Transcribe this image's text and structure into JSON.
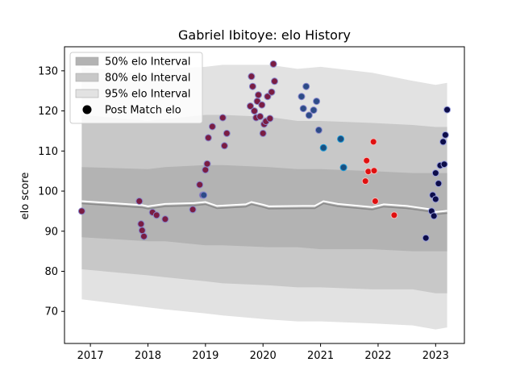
{
  "chart_data": {
    "type": "scatter",
    "title": "Gabriel Ibitoye: elo History",
    "xlabel": "",
    "ylabel": "elo score",
    "xlim": [
      2016.55,
      2023.5
    ],
    "ylim": [
      62,
      136
    ],
    "x_ticks": [
      2017,
      2018,
      2019,
      2020,
      2021,
      2022,
      2023
    ],
    "x_tick_labels": [
      "2017",
      "2018",
      "2019",
      "2020",
      "2021",
      "2022",
      "2023"
    ],
    "y_ticks": [
      70,
      80,
      90,
      100,
      110,
      120,
      130
    ],
    "y_tick_labels": [
      "70",
      "80",
      "90",
      "100",
      "110",
      "120",
      "130"
    ],
    "grid": false,
    "legend_position": "top-left",
    "legend": [
      {
        "label": "50% elo Interval",
        "kind": "band",
        "color": "#b3b3b3"
      },
      {
        "label": "80% elo Interval",
        "kind": "band",
        "color": "#c8c8c8"
      },
      {
        "label": "95% elo Interval",
        "kind": "band",
        "color": "#e2e2e2"
      },
      {
        "label": "Post Match elo",
        "kind": "marker",
        "color": "#000000"
      }
    ],
    "bands": {
      "x": [
        2016.85,
        2018.0,
        2018.3,
        2019.0,
        2019.3,
        2020.1,
        2020.6,
        2021.0,
        2021.9,
        2022.6,
        2023.0,
        2023.2
      ],
      "p95_low": [
        73.0,
        71.0,
        70.5,
        69.5,
        69.0,
        68.0,
        67.5,
        67.5,
        67.0,
        66.5,
        65.5,
        66.0
      ],
      "p95_high": [
        131.0,
        129.0,
        130.5,
        131.0,
        131.5,
        131.5,
        130.5,
        131.0,
        129.5,
        127.5,
        126.5,
        127.0
      ],
      "p80_low": [
        80.5,
        79.0,
        78.5,
        77.5,
        77.0,
        76.5,
        76.0,
        76.0,
        75.5,
        75.5,
        74.5,
        74.5
      ],
      "p80_high": [
        119.0,
        117.5,
        118.0,
        119.0,
        119.0,
        118.5,
        117.5,
        117.5,
        117.0,
        116.5,
        116.0,
        116.0
      ],
      "p50_low": [
        88.5,
        87.5,
        87.5,
        86.5,
        86.5,
        86.0,
        86.0,
        85.5,
        85.5,
        85.0,
        85.0,
        85.0
      ],
      "p50_high": [
        106.0,
        105.5,
        106.0,
        106.5,
        106.5,
        106.0,
        105.5,
        105.5,
        105.0,
        104.5,
        104.5,
        104.5
      ]
    },
    "median_line": {
      "x": [
        2016.85,
        2017.9,
        2018.0,
        2018.3,
        2018.8,
        2019.0,
        2019.2,
        2019.7,
        2019.8,
        2020.0,
        2020.1,
        2020.7,
        2020.9,
        2021.05,
        2021.3,
        2021.9,
        2022.1,
        2022.5,
        2022.95,
        2023.0,
        2023.2
      ],
      "y": [
        97.5,
        96.5,
        96.2,
        96.8,
        97.0,
        97.3,
        96.3,
        96.7,
        97.3,
        96.6,
        96.2,
        96.3,
        96.3,
        97.5,
        96.8,
        96.0,
        96.7,
        96.3,
        95.4,
        94.8,
        95.1
      ],
      "offset": -0.6
    },
    "series": [
      {
        "color": "#7a1d43",
        "edge": "#8888cc",
        "points": [
          [
            2016.85,
            95.0
          ],
          [
            2017.85,
            97.5
          ],
          [
            2017.88,
            91.8
          ],
          [
            2017.9,
            90.2
          ],
          [
            2017.93,
            88.7
          ],
          [
            2018.08,
            94.7
          ],
          [
            2018.15,
            94.0
          ],
          [
            2018.3,
            93.0
          ],
          [
            2018.78,
            95.4
          ],
          [
            2018.9,
            101.6
          ],
          [
            2018.95,
            99.0
          ],
          [
            2019.0,
            105.3
          ],
          [
            2019.03,
            106.8
          ],
          [
            2019.05,
            113.3
          ],
          [
            2019.12,
            116.1
          ],
          [
            2019.3,
            118.3
          ],
          [
            2019.33,
            111.3
          ],
          [
            2019.37,
            114.4
          ],
          [
            2019.78,
            121.2
          ],
          [
            2019.8,
            128.6
          ],
          [
            2019.82,
            126.1
          ],
          [
            2019.85,
            120.0
          ],
          [
            2019.88,
            118.3
          ],
          [
            2019.9,
            122.4
          ],
          [
            2019.92,
            124.0
          ],
          [
            2019.95,
            118.6
          ],
          [
            2019.98,
            121.5
          ],
          [
            2020.0,
            114.4
          ],
          [
            2020.02,
            116.7
          ],
          [
            2020.05,
            117.4
          ],
          [
            2020.08,
            123.6
          ],
          [
            2020.12,
            118.1
          ],
          [
            2020.15,
            124.7
          ],
          [
            2020.18,
            131.7
          ],
          [
            2020.2,
            127.4
          ]
        ]
      },
      {
        "color": "#2d4b87",
        "edge": "#8888cc",
        "points": [
          [
            2018.97,
            99.0
          ],
          [
            2020.67,
            123.6
          ],
          [
            2020.7,
            120.6
          ],
          [
            2020.75,
            126.1
          ],
          [
            2020.8,
            118.9
          ],
          [
            2020.88,
            120.2
          ],
          [
            2020.93,
            122.4
          ],
          [
            2020.97,
            115.2
          ]
        ]
      },
      {
        "color": "#1a4f80",
        "edge": "#1a9ad8",
        "points": [
          [
            2021.05,
            110.8
          ],
          [
            2021.35,
            113.0
          ],
          [
            2021.4,
            105.9
          ]
        ]
      },
      {
        "color": "#e01010",
        "edge": "#f0c0c0",
        "points": [
          [
            2021.78,
            102.5
          ],
          [
            2021.8,
            107.6
          ],
          [
            2021.83,
            104.9
          ],
          [
            2021.92,
            112.3
          ],
          [
            2021.93,
            105.1
          ],
          [
            2021.95,
            97.5
          ],
          [
            2022.28,
            94.0
          ]
        ]
      },
      {
        "color": "#0d0d4a",
        "edge": "#9aa0dd",
        "points": [
          [
            2022.83,
            88.3
          ],
          [
            2022.93,
            95.0
          ],
          [
            2022.95,
            99.0
          ],
          [
            2022.97,
            93.8
          ],
          [
            2023.0,
            98.0
          ],
          [
            2023.0,
            104.5
          ],
          [
            2023.05,
            101.9
          ],
          [
            2023.08,
            106.4
          ],
          [
            2023.13,
            112.3
          ],
          [
            2023.15,
            106.7
          ],
          [
            2023.17,
            114.0
          ],
          [
            2023.2,
            120.3
          ]
        ]
      }
    ]
  }
}
